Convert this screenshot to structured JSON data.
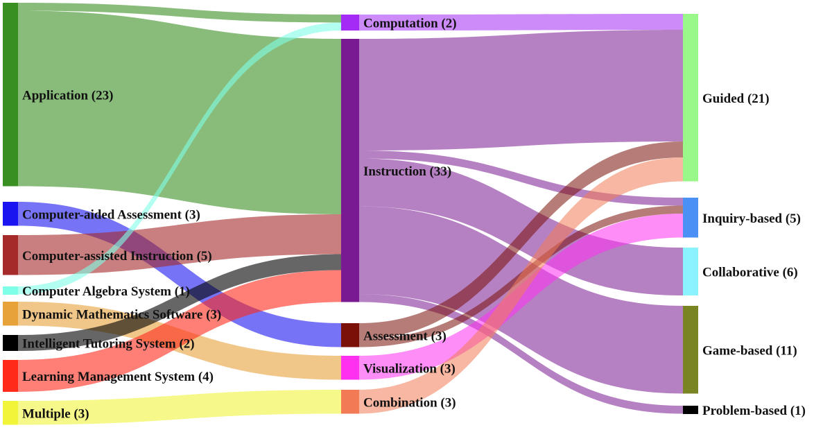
{
  "diagram": {
    "type": "sankey",
    "columns": [
      {
        "nodes": [
          {
            "id": "app",
            "label": "Application (23)",
            "value": 23,
            "color": "#3a8f23"
          },
          {
            "id": "caa",
            "label": "Computer-aided Assessment (3)",
            "value": 3,
            "color": "#1a15f0"
          },
          {
            "id": "cai",
            "label": "Computer-assisted Instruction (5)",
            "value": 5,
            "color": "#a52a2a"
          },
          {
            "id": "cas",
            "label": "Computer Algebra System (1)",
            "value": 1,
            "color": "#7fffe8"
          },
          {
            "id": "dms",
            "label": "Dynamic Mathematics Software (3)",
            "value": 3,
            "color": "#e8a23a"
          },
          {
            "id": "its",
            "label": "Intelligent Tutoring System (2)",
            "value": 2,
            "color": "#000000"
          },
          {
            "id": "lms",
            "label": "Learning Management System (4)",
            "value": 4,
            "color": "#ff2a1a"
          },
          {
            "id": "mul",
            "label": "Multiple (3)",
            "value": 3,
            "color": "#f0f53a"
          }
        ]
      },
      {
        "nodes": [
          {
            "id": "comp",
            "label": "Computation (2)",
            "value": 2,
            "color": "#a42bf5"
          },
          {
            "id": "inst",
            "label": "Instruction (33)",
            "value": 33,
            "color": "#7a1a92"
          },
          {
            "id": "asse",
            "label": "Assessment (3)",
            "value": 3,
            "color": "#7a1008"
          },
          {
            "id": "visu",
            "label": "Visualization (3)",
            "value": 3,
            "color": "#ff30f0"
          },
          {
            "id": "combo",
            "label": "Combination (3)",
            "value": 3,
            "color": "#f27b55"
          }
        ]
      },
      {
        "nodes": [
          {
            "id": "guid",
            "label": "Guided (21)",
            "value": 21,
            "color": "#9af78a"
          },
          {
            "id": "inq",
            "label": "Inquiry-based (5)",
            "value": 5,
            "color": "#4a90f5"
          },
          {
            "id": "coll",
            "label": "Collaborative (6)",
            "value": 6,
            "color": "#8af3ff"
          },
          {
            "id": "game",
            "label": "Game-based (11)",
            "value": 11,
            "color": "#7b8422"
          },
          {
            "id": "prob",
            "label": "Problem-based (1)",
            "value": 1,
            "color": "#000000"
          }
        ]
      }
    ],
    "links": [
      {
        "source": "app",
        "target": "comp",
        "value": 1
      },
      {
        "source": "app",
        "target": "inst",
        "value": 22
      },
      {
        "source": "caa",
        "target": "asse",
        "value": 3
      },
      {
        "source": "cai",
        "target": "inst",
        "value": 5
      },
      {
        "source": "cas",
        "target": "comp",
        "value": 1
      },
      {
        "source": "dms",
        "target": "visu",
        "value": 3
      },
      {
        "source": "its",
        "target": "inst",
        "value": 2
      },
      {
        "source": "lms",
        "target": "inst",
        "value": 4
      },
      {
        "source": "mul",
        "target": "combo",
        "value": 3
      },
      {
        "source": "comp",
        "target": "guid",
        "value": 2
      },
      {
        "source": "inst",
        "target": "guid",
        "value": 14
      },
      {
        "source": "inst",
        "target": "coll",
        "value": 6
      },
      {
        "source": "inst",
        "target": "game",
        "value": 11
      },
      {
        "source": "inst",
        "target": "inq",
        "value": 1
      },
      {
        "source": "inst",
        "target": "prob",
        "value": 1
      },
      {
        "source": "asse",
        "target": "guid",
        "value": 2
      },
      {
        "source": "asse",
        "target": "inq",
        "value": 1
      },
      {
        "source": "visu",
        "target": "inq",
        "value": 3
      },
      {
        "source": "combo",
        "target": "guid",
        "value": 3
      }
    ]
  }
}
